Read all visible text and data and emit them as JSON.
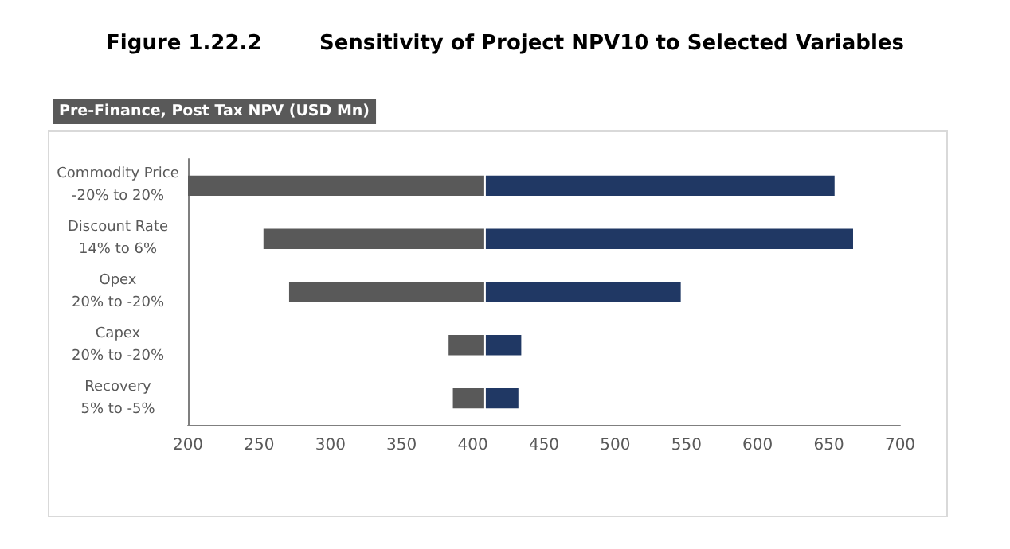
{
  "chart_data": {
    "type": "bar",
    "orientation": "horizontal",
    "title": "Figure 1.22.2        Sensitivity of Project NPV10 to Selected Variables",
    "subtitle": "Pre-Finance, Post Tax NPV (USD Mn)",
    "categories": [
      "Commodity Price\n-20% to 20%",
      "Discount Rate\n14% to 6%",
      "Opex\n20% to -20%",
      "Capex\n20% to -20%",
      "Recovery\n5% to -5%"
    ],
    "series": [
      {
        "color": "#595959",
        "base": [
          200,
          253,
          271,
          383,
          386
        ],
        "values": [
          208,
          155,
          137,
          25,
          22
        ]
      },
      {
        "color": "#203864",
        "base": [
          408,
          408,
          408,
          408,
          408
        ],
        "values": [
          246,
          259,
          138,
          26,
          24
        ]
      }
    ],
    "xlim": [
      200,
      700
    ],
    "xticks": [
      200,
      250,
      300,
      350,
      400,
      450,
      500,
      550,
      600,
      650,
      700
    ],
    "grid": false
  }
}
